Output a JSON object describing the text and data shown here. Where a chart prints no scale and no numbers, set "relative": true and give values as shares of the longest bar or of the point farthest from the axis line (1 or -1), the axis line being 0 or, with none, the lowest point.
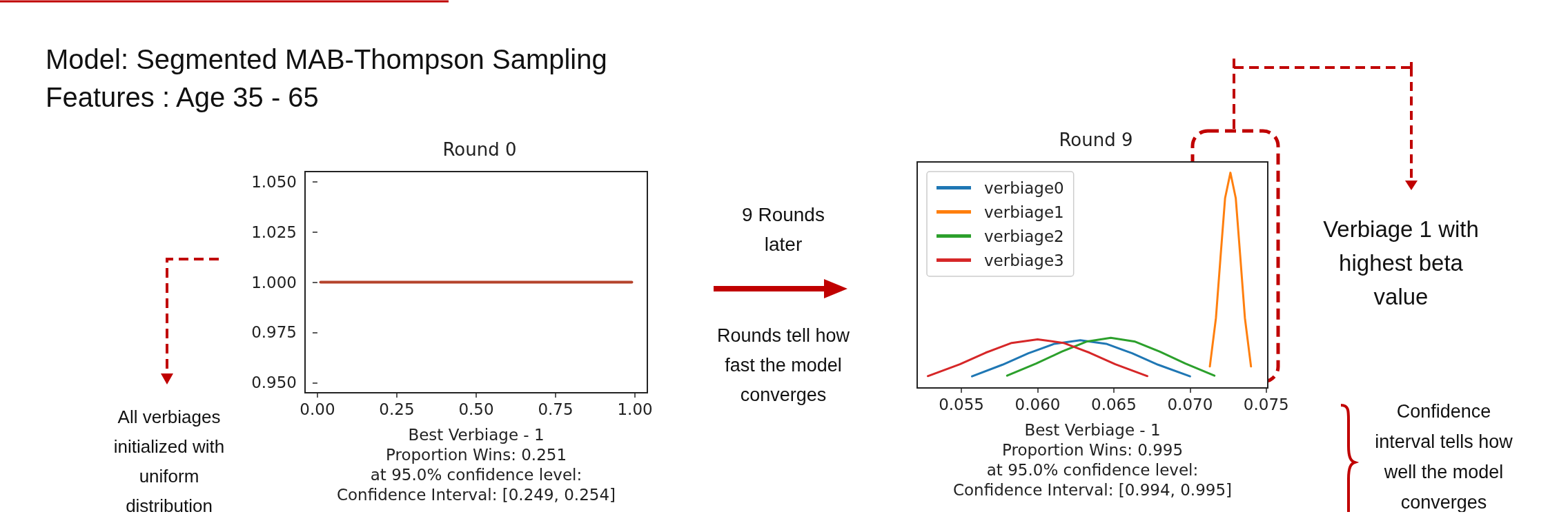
{
  "chart_data": [
    {
      "type": "line",
      "title": "Round 0",
      "xlabel": "Best Verbiage - 1\nProportion Wins: 0.251\nat 95.0% confidence level:\nConfidence Interval: [0.249, 0.254]",
      "annotations": [
        "Model: Segmented MAB-Thompson Sampling",
        "Features : Age 35 - 65",
        "All verbiages initialized with uniform distribution",
        "9 Rounds later",
        "Rounds tell how fast the model converges"
      ],
      "xlim": [
        -0.039,
        1.039
      ],
      "xticks": [
        {
          "value": 0,
          "label": "0.00"
        },
        {
          "value": 0.25,
          "label": "0.25"
        },
        {
          "value": 0.5,
          "label": "0.50"
        },
        {
          "value": 0.75,
          "label": "0.75"
        },
        {
          "value": 1,
          "label": "1.00"
        }
      ],
      "ylim": [
        0.945,
        1.055
      ],
      "yticks": [
        {
          "value": 0.95,
          "label": "0.950"
        },
        {
          "value": 0.975,
          "label": "0.975"
        },
        {
          "value": 1,
          "label": "1.000"
        },
        {
          "value": 1.025,
          "label": "1.025"
        },
        {
          "value": 1.05,
          "label": "1.050"
        }
      ],
      "series": [
        {
          "color": "#b5432b",
          "x": [
            0.01,
            0.99
          ],
          "values": [
            1,
            1
          ]
        }
      ],
      "grid": false,
      "legend": false,
      "marker": "none",
      "line_style": "solid"
    },
    {
      "type": "line",
      "title": "Round 9",
      "xlabel": "Best Verbiage - 1\nProportion Wins: 0.995\nat 95.0% confidence level:\nConfidence Interval: [0.994, 0.995]",
      "relative": true,
      "annotations": [
        "Verbiage 1 with highest beta value",
        "Confidence interval tells how well the model converges"
      ],
      "xlim": [
        0.0521,
        0.0751
      ],
      "xticks": [
        0.055,
        {
          "value": 0.06,
          "label": "0.060"
        },
        0.065,
        {
          "value": 0.07,
          "label": "0.070"
        },
        0.075
      ],
      "series": [
        {
          "name": "verbiage0",
          "color": "#1f77b4",
          "x": [
            0.0557,
            0.0577,
            0.0594,
            0.0611,
            0.0628,
            0.0645,
            0.0662,
            0.0679,
            0.07
          ],
          "values": [
            0.054,
            0.108,
            0.161,
            0.205,
            0.222,
            0.205,
            0.161,
            0.108,
            0.054
          ]
        },
        {
          "name": "verbiage1",
          "color": "#ff7f0e",
          "x": [
            0.0713,
            0.0717,
            0.072,
            0.0723,
            0.07265,
            0.073,
            0.0733,
            0.0736,
            0.074
          ],
          "values": [
            0.1,
            0.325,
            0.607,
            0.882,
            1,
            0.882,
            0.607,
            0.325,
            0.1
          ]
        },
        {
          "name": "verbiage2",
          "color": "#2ca02c",
          "x": [
            0.058,
            0.0599,
            0.0616,
            0.0632,
            0.0648,
            0.0664,
            0.068,
            0.0697,
            0.0716
          ],
          "values": [
            0.057,
            0.113,
            0.169,
            0.215,
            0.233,
            0.215,
            0.169,
            0.113,
            0.057
          ]
        },
        {
          "name": "verbiage3",
          "color": "#d62728",
          "x": [
            0.0528,
            0.0549,
            0.0566,
            0.0583,
            0.06,
            0.0617,
            0.0634,
            0.0651,
            0.0672
          ],
          "values": [
            0.055,
            0.11,
            0.164,
            0.209,
            0.226,
            0.209,
            0.164,
            0.11,
            0.055
          ]
        }
      ],
      "grid": false,
      "legend": "top left",
      "marker": "none",
      "line_style": "solid"
    }
  ]
}
